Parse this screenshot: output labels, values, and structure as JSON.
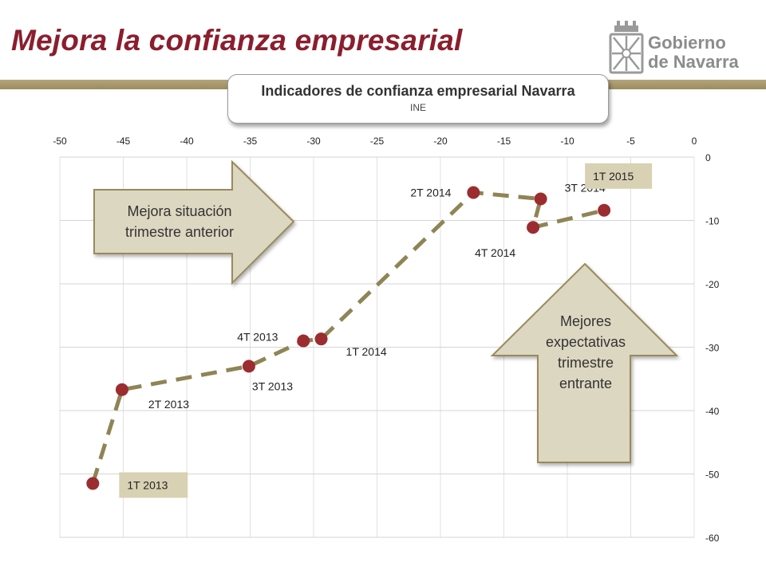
{
  "slide": {
    "title": "Mejora la confianza empresarial"
  },
  "logo": {
    "text": "Gobierno\nde Navarra"
  },
  "colors": {
    "title": "#8b1e2d",
    "bar": "#a3946a",
    "line": "#8f8455",
    "marker": "#9b2d30",
    "label_box": "#d9d1b4",
    "callout_fill": "#dcd7c1",
    "callout_stroke": "#9a8a5b"
  },
  "chart_data": {
    "type": "scatter",
    "title": "Indicadores de confianza empresarial Navarra",
    "subtitle": "INE",
    "xlim": [
      -50,
      0
    ],
    "ylim": [
      -60,
      0
    ],
    "x_ticks": [
      -50,
      -45,
      -40,
      -35,
      -30,
      -25,
      -20,
      -15,
      -10,
      -5,
      0
    ],
    "y_ticks": [
      0,
      -10,
      -20,
      -30,
      -40,
      -50,
      -60
    ],
    "x_axis_position": "top",
    "y_axis_position": "right",
    "grid": true,
    "connected": true,
    "line_style": "dashed",
    "points": [
      {
        "label": "1T 2013",
        "x": -47.4,
        "y": -51.5,
        "boxed": true
      },
      {
        "label": "2T 2013",
        "x": -45.1,
        "y": -36.7,
        "boxed": false
      },
      {
        "label": "3T 2013",
        "x": -35.1,
        "y": -33.0,
        "boxed": false
      },
      {
        "label": "4T 2013",
        "x": -30.8,
        "y": -29.0,
        "boxed": false
      },
      {
        "label": "1T 2014",
        "x": -29.4,
        "y": -28.7,
        "boxed": false
      },
      {
        "label": "2T 2014",
        "x": -17.4,
        "y": -5.6,
        "boxed": false
      },
      {
        "label": "3T 2014",
        "x": -12.1,
        "y": -6.6,
        "boxed": false
      },
      {
        "label": "4T 2014",
        "x": -12.7,
        "y": -11.1,
        "boxed": false
      },
      {
        "label": "1T 2015",
        "x": -7.1,
        "y": -8.4,
        "boxed": true
      }
    ],
    "annotations": [
      {
        "text": "Mejora situación\ntrimestre anterior",
        "shape": "right-arrow"
      },
      {
        "text": "Mejores\nexpectativas\ntrimestre\nentrante",
        "shape": "up-arrow"
      }
    ]
  }
}
